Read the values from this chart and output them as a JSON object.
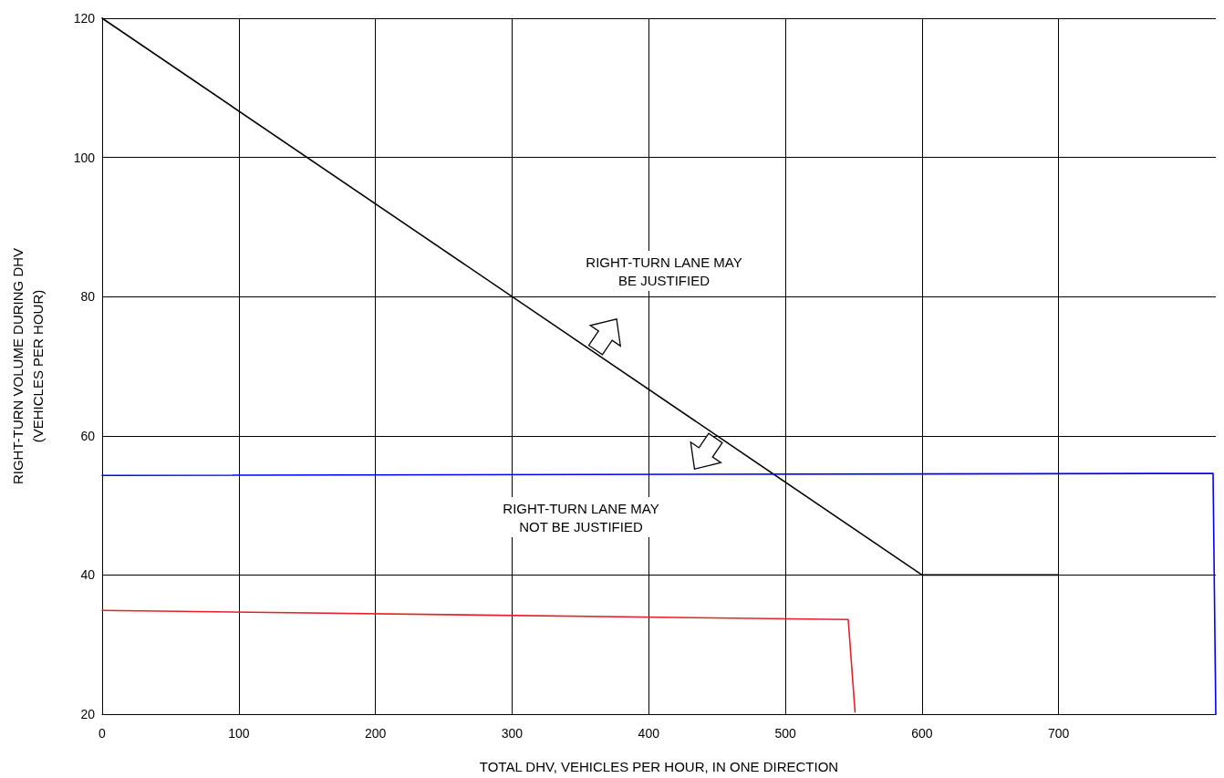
{
  "chart_data": {
    "type": "line",
    "xlabel": "TOTAL DHV, VEHICLES PER HOUR, IN ONE DIRECTION",
    "ylabel": "RIGHT-TURN VOLUME DURING DHV\n(VEHICLES PER HOUR)",
    "series": [
      {
        "color": "#000000",
        "x": [
          0,
          600,
          700
        ],
        "values": [
          120,
          40,
          40
        ]
      },
      {
        "color": "#0000ff",
        "x": [
          0,
          813,
          815
        ],
        "values": [
          54.3,
          54.6,
          20
        ]
      },
      {
        "color": "#e8202a",
        "x": [
          0,
          546,
          551
        ],
        "values": [
          34.9,
          33.6,
          20.3
        ]
      }
    ],
    "xlim": [
      0,
      815
    ],
    "xticks": [
      0,
      100,
      200,
      300,
      400,
      500,
      600,
      700
    ],
    "ylim": [
      20,
      120
    ],
    "yticks": [
      20,
      40,
      60,
      80,
      100,
      120
    ],
    "grid": true,
    "marker": "none",
    "line_style": "solid",
    "annotations": [
      "RIGHT-TURN LANE MAY\nBE JUSTIFIED",
      "RIGHT-TURN LANE MAY\nNOT BE JUSTIFIED"
    ]
  }
}
